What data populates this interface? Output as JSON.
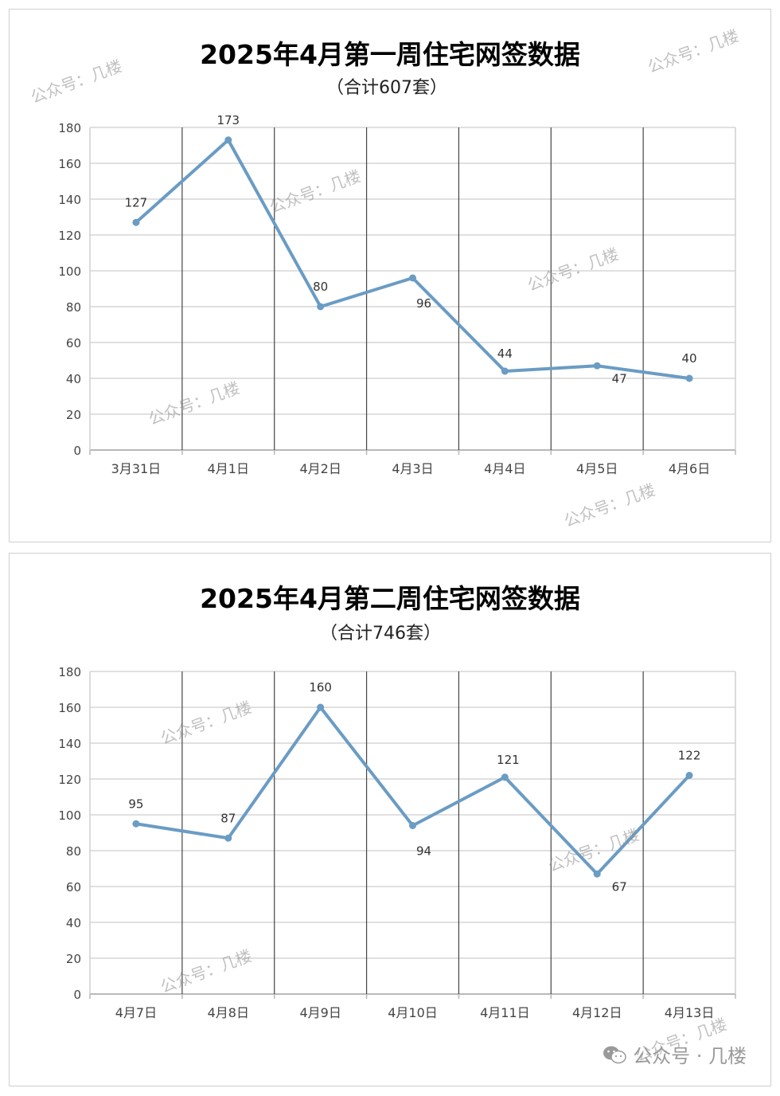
{
  "chart_data": [
    {
      "type": "line",
      "title": "2025年4月第一周住宅网签数据",
      "subtitle": "（合计607套）",
      "categories": [
        "3月31日",
        "4月1日",
        "4月2日",
        "4月3日",
        "4月4日",
        "4月5日",
        "4月6日"
      ],
      "values": [
        127,
        173,
        80,
        96,
        44,
        47,
        40
      ],
      "ylim": [
        0,
        180
      ],
      "yticks": [
        "0",
        "20",
        "40",
        "60",
        "80",
        "100",
        "120",
        "140",
        "160",
        "180"
      ],
      "grid": true,
      "color": "#6a9cc4"
    },
    {
      "type": "line",
      "title": "2025年4月第二周住宅网签数据",
      "subtitle": "（合计746套）",
      "categories": [
        "4月7日",
        "4月8日",
        "4月9日",
        "4月10日",
        "4月11日",
        "4月12日",
        "4月13日"
      ],
      "values": [
        95,
        87,
        160,
        94,
        121,
        67,
        122
      ],
      "ylim": [
        0,
        180
      ],
      "yticks": [
        "0",
        "20",
        "40",
        "60",
        "80",
        "100",
        "120",
        "140",
        "160",
        "180"
      ],
      "grid": true,
      "color": "#6a9cc4"
    }
  ],
  "watermark": "公众号：几楼",
  "footer": {
    "icon": "wechat-icon",
    "text": "公众号 · 几楼"
  }
}
